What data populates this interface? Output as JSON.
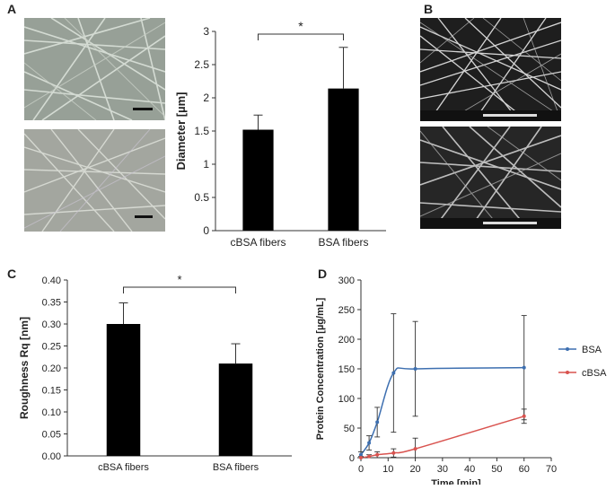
{
  "panels": {
    "a": "A",
    "b": "B",
    "c": "C",
    "d": "D"
  },
  "colors": {
    "bar": "#000000",
    "bsa": "#3d6fb0",
    "cbsa": "#d9534f",
    "sem_bg": "#202020",
    "optical_bg": "#9aa29a"
  },
  "chart_data": [
    {
      "id": "A",
      "type": "bar",
      "categories": [
        "cBSA fibers",
        "BSA fibers"
      ],
      "values": [
        1.52,
        2.14
      ],
      "errors": [
        0.22,
        0.62
      ],
      "ylabel": "Diameter [µm]",
      "xlabel": "",
      "ylim": [
        0,
        3
      ],
      "yticks": [
        "0",
        "0.5",
        "1",
        "1.5",
        "2",
        "2.5",
        "3"
      ],
      "significance": "*",
      "grid": false
    },
    {
      "id": "C",
      "type": "bar",
      "categories": [
        "cBSA fibers",
        "BSA fibers"
      ],
      "values": [
        0.3,
        0.21
      ],
      "errors": [
        0.048,
        0.045
      ],
      "ylabel": "Roughness Rq [nm]",
      "xlabel": "",
      "ylim": [
        0,
        0.4
      ],
      "yticks": [
        "0.00",
        "0.05",
        "0.10",
        "0.15",
        "0.20",
        "0.25",
        "0.30",
        "0.35",
        "0.40"
      ],
      "significance": "*",
      "grid": false
    },
    {
      "id": "D",
      "type": "line",
      "xlabel": "Time [min]",
      "ylabel": "Protein Concentration [µg/mL]",
      "xlim": [
        0,
        70
      ],
      "ylim": [
        0,
        300
      ],
      "xticks": [
        "0",
        "10",
        "20",
        "30",
        "40",
        "50",
        "60",
        "70"
      ],
      "yticks": [
        "0",
        "50",
        "100",
        "150",
        "200",
        "250",
        "300"
      ],
      "legend_position": "right",
      "grid": false,
      "series": [
        {
          "name": "BSA",
          "x": [
            0,
            3,
            6,
            12,
            20,
            60
          ],
          "y": [
            5,
            25,
            60,
            143,
            150,
            152
          ],
          "err": [
            5,
            12,
            25,
            100,
            80,
            88
          ]
        },
        {
          "name": "cBSA",
          "x": [
            0,
            3,
            6,
            12,
            20,
            60
          ],
          "y": [
            0,
            2,
            5,
            8,
            15,
            70
          ],
          "err": [
            2,
            3,
            5,
            7,
            18,
            12
          ]
        }
      ]
    }
  ]
}
